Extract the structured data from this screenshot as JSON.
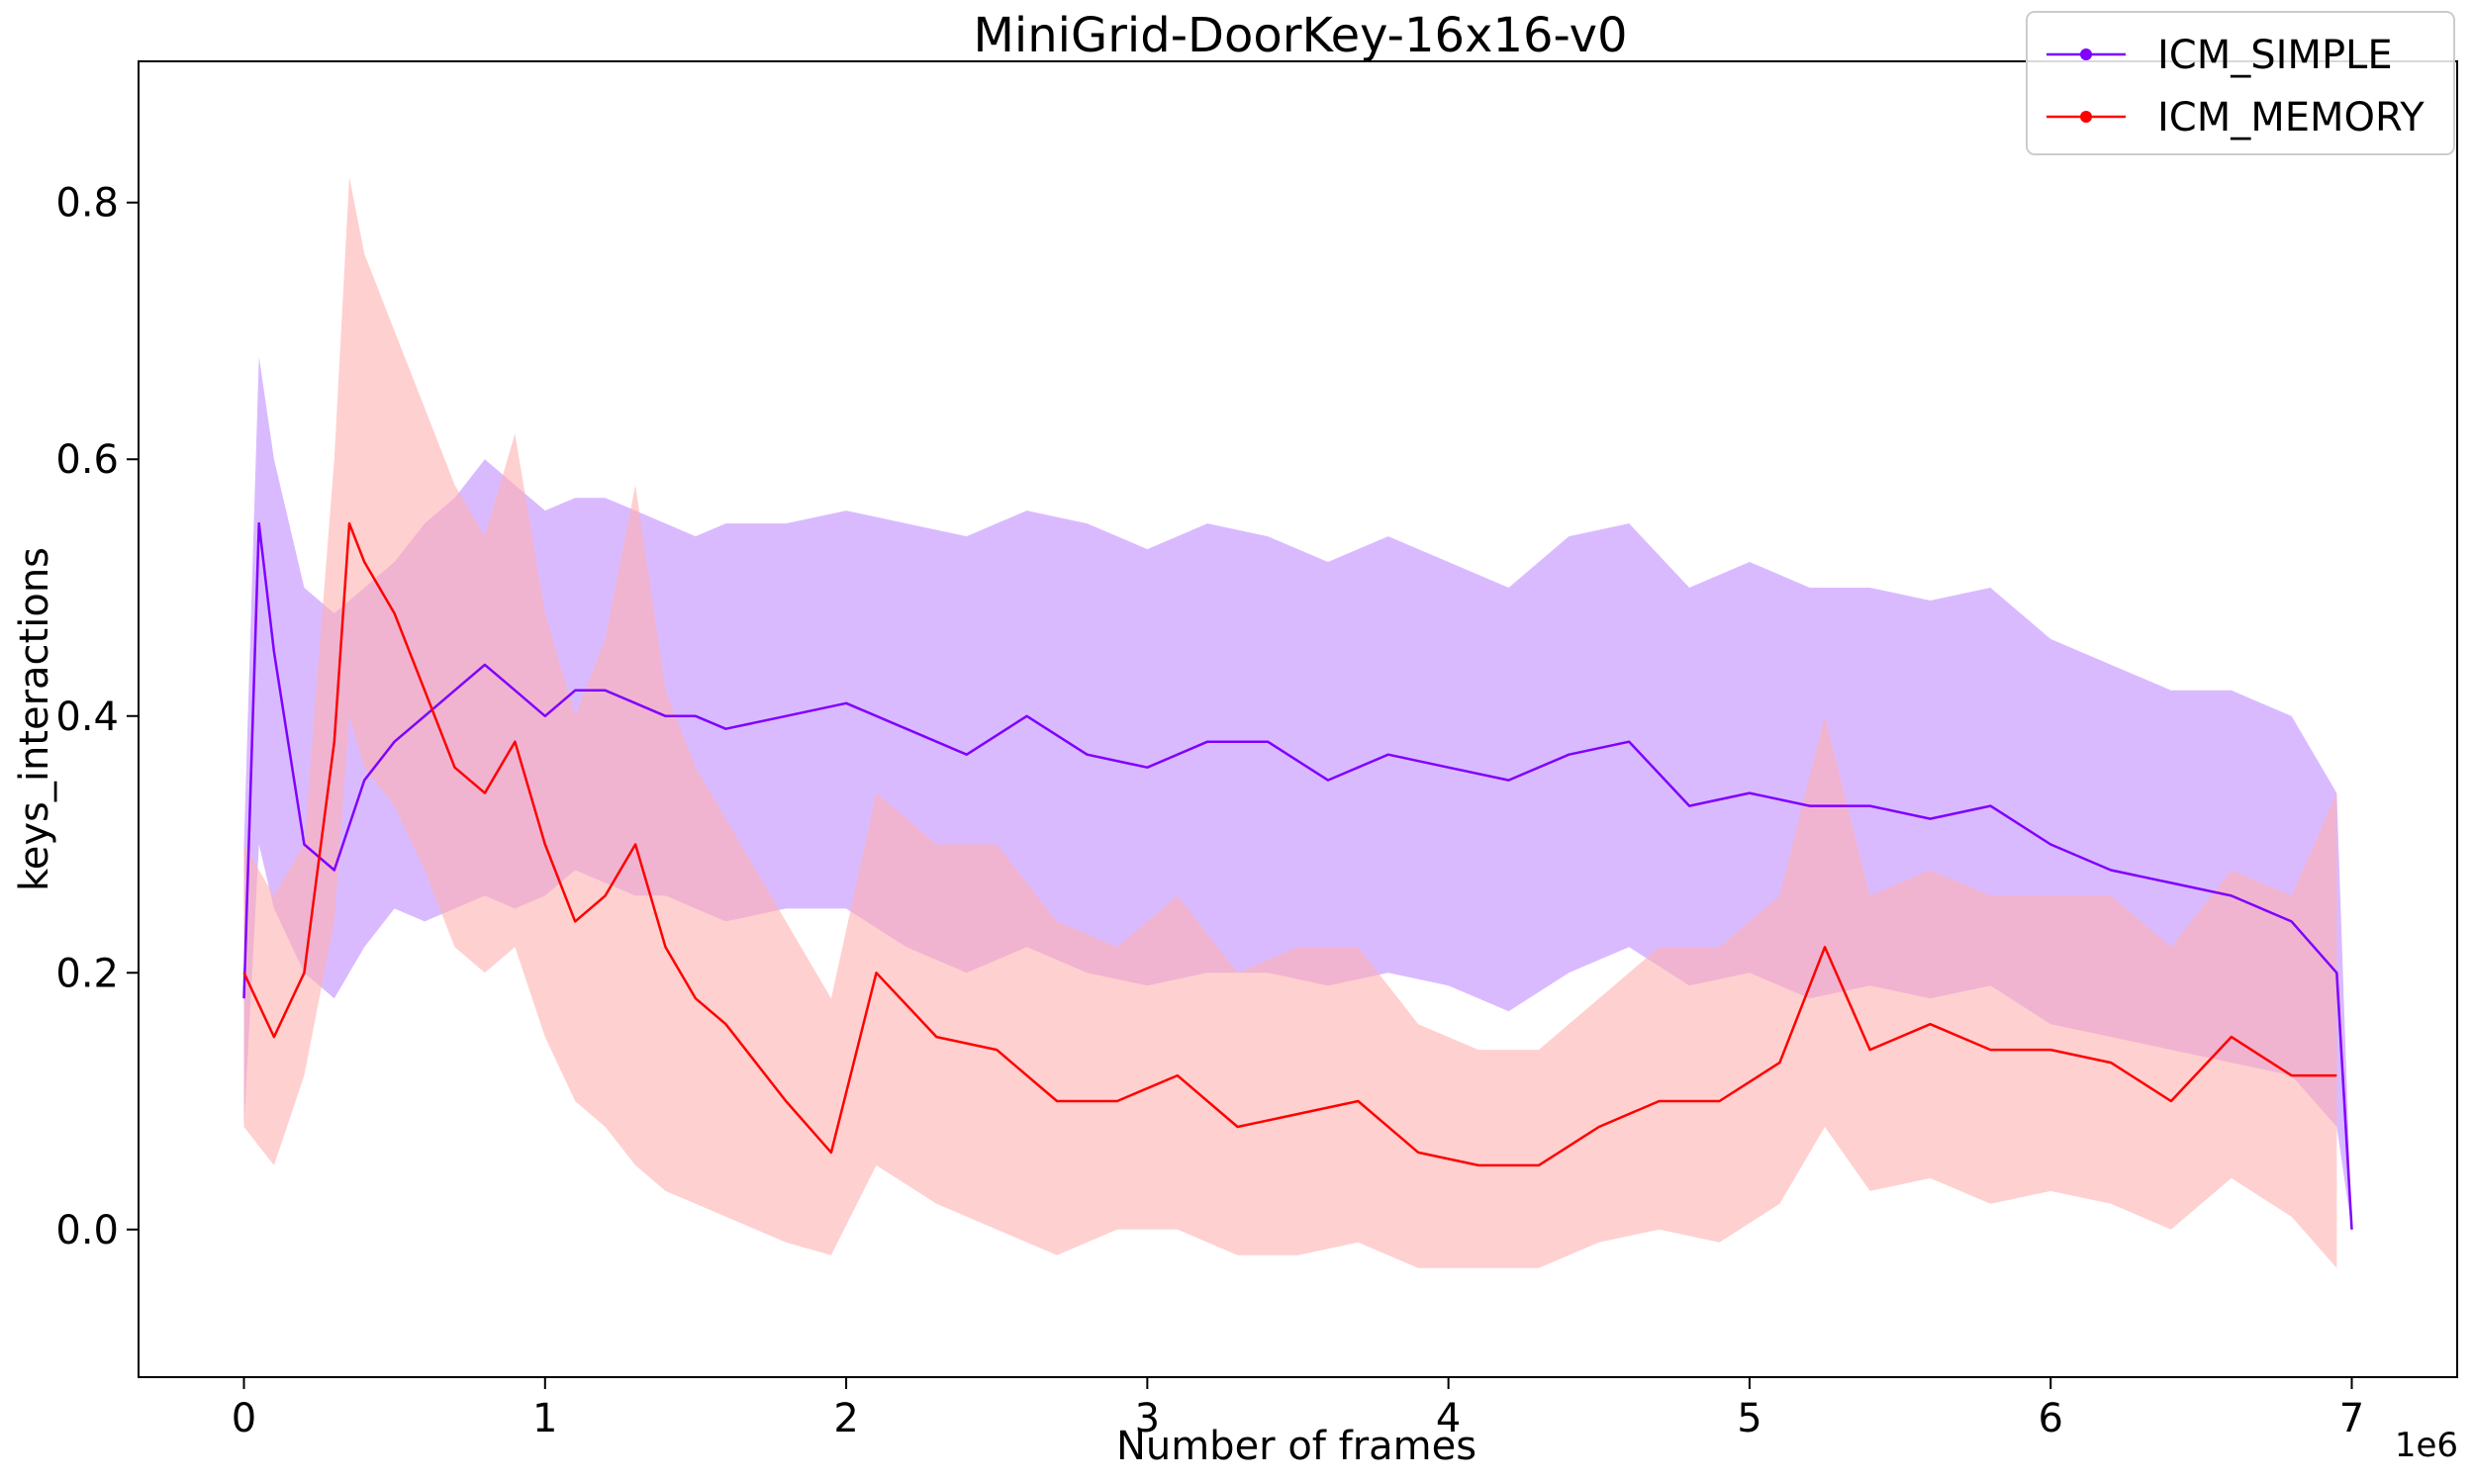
{
  "chart_data": {
    "type": "line",
    "title": "MiniGrid-DoorKey-16x16-v0",
    "xlabel": "Number of frames",
    "ylabel": "keys_interactions",
    "x_offset_label": "1e6",
    "xlim": [
      -0.35,
      7.35
    ],
    "ylim": [
      -0.115,
      0.91
    ],
    "x_ticks": [
      0,
      1,
      2,
      3,
      4,
      5,
      6,
      7
    ],
    "x_tick_labels": [
      "0",
      "1",
      "2",
      "3",
      "4",
      "5",
      "6",
      "7"
    ],
    "y_ticks": [
      0.0,
      0.2,
      0.4,
      0.6,
      0.8
    ],
    "y_tick_labels": [
      "0.0",
      "0.2",
      "0.4",
      "0.6",
      "0.8"
    ],
    "grid": false,
    "legend_position": "top-right",
    "series": [
      {
        "name": "ICM_SIMPLE",
        "color": "#8000ff",
        "band_color": "#c28cff",
        "x": [
          0.0,
          0.05,
          0.1,
          0.2,
          0.3,
          0.4,
          0.5,
          0.6,
          0.7,
          0.8,
          0.9,
          1.0,
          1.1,
          1.2,
          1.3,
          1.4,
          1.5,
          1.6,
          1.8,
          2.0,
          2.2,
          2.4,
          2.6,
          2.8,
          3.0,
          3.2,
          3.4,
          3.6,
          3.8,
          4.0,
          4.2,
          4.4,
          4.6,
          4.8,
          5.0,
          5.2,
          5.4,
          5.6,
          5.8,
          6.0,
          6.2,
          6.4,
          6.6,
          6.8,
          6.95,
          7.0
        ],
        "mean": [
          0.18,
          0.55,
          0.45,
          0.3,
          0.28,
          0.35,
          0.38,
          0.4,
          0.42,
          0.44,
          0.42,
          0.4,
          0.42,
          0.42,
          0.41,
          0.4,
          0.4,
          0.39,
          0.4,
          0.41,
          0.39,
          0.37,
          0.4,
          0.37,
          0.36,
          0.38,
          0.38,
          0.35,
          0.37,
          0.36,
          0.35,
          0.37,
          0.38,
          0.33,
          0.34,
          0.33,
          0.33,
          0.32,
          0.33,
          0.3,
          0.28,
          0.27,
          0.26,
          0.24,
          0.2,
          0.0
        ],
        "lower": [
          0.08,
          0.3,
          0.25,
          0.2,
          0.18,
          0.22,
          0.25,
          0.24,
          0.25,
          0.26,
          0.25,
          0.26,
          0.28,
          0.27,
          0.26,
          0.26,
          0.25,
          0.24,
          0.25,
          0.25,
          0.22,
          0.2,
          0.22,
          0.2,
          0.19,
          0.2,
          0.2,
          0.19,
          0.2,
          0.19,
          0.17,
          0.2,
          0.22,
          0.19,
          0.2,
          0.18,
          0.19,
          0.18,
          0.19,
          0.16,
          0.15,
          0.14,
          0.13,
          0.12,
          0.08,
          0.0
        ],
        "upper": [
          0.3,
          0.68,
          0.6,
          0.5,
          0.48,
          0.5,
          0.52,
          0.55,
          0.57,
          0.6,
          0.58,
          0.56,
          0.57,
          0.57,
          0.56,
          0.55,
          0.54,
          0.55,
          0.55,
          0.56,
          0.55,
          0.54,
          0.56,
          0.55,
          0.53,
          0.55,
          0.54,
          0.52,
          0.54,
          0.52,
          0.5,
          0.54,
          0.55,
          0.5,
          0.52,
          0.5,
          0.5,
          0.49,
          0.5,
          0.46,
          0.44,
          0.42,
          0.42,
          0.4,
          0.34,
          0.0
        ]
      },
      {
        "name": "ICM_MEMORY",
        "color": "#ff0000",
        "band_color": "#ffb0b0",
        "x": [
          0.0,
          0.1,
          0.2,
          0.3,
          0.35,
          0.4,
          0.5,
          0.6,
          0.7,
          0.8,
          0.9,
          1.0,
          1.1,
          1.2,
          1.3,
          1.4,
          1.5,
          1.6,
          1.8,
          1.95,
          2.1,
          2.3,
          2.5,
          2.7,
          2.9,
          3.1,
          3.3,
          3.5,
          3.7,
          3.9,
          4.1,
          4.3,
          4.5,
          4.7,
          4.9,
          5.1,
          5.25,
          5.4,
          5.6,
          5.8,
          6.0,
          6.2,
          6.4,
          6.6,
          6.8,
          6.95
        ],
        "mean": [
          0.2,
          0.15,
          0.2,
          0.38,
          0.55,
          0.52,
          0.48,
          0.42,
          0.36,
          0.34,
          0.38,
          0.3,
          0.24,
          0.26,
          0.3,
          0.22,
          0.18,
          0.16,
          0.1,
          0.06,
          0.2,
          0.15,
          0.14,
          0.1,
          0.1,
          0.12,
          0.08,
          0.09,
          0.1,
          0.06,
          0.05,
          0.05,
          0.08,
          0.1,
          0.1,
          0.13,
          0.22,
          0.14,
          0.16,
          0.14,
          0.14,
          0.13,
          0.1,
          0.15,
          0.12,
          0.12
        ],
        "lower": [
          0.08,
          0.05,
          0.12,
          0.24,
          0.4,
          0.36,
          0.33,
          0.28,
          0.22,
          0.2,
          0.22,
          0.15,
          0.1,
          0.08,
          0.05,
          0.03,
          0.02,
          0.01,
          -0.01,
          -0.02,
          0.05,
          0.02,
          0.0,
          -0.02,
          0.0,
          0.0,
          -0.02,
          -0.02,
          -0.01,
          -0.03,
          -0.03,
          -0.03,
          -0.01,
          0.0,
          -0.01,
          0.02,
          0.08,
          0.03,
          0.04,
          0.02,
          0.03,
          0.02,
          0.0,
          0.04,
          0.01,
          -0.03
        ],
        "upper": [
          0.3,
          0.26,
          0.3,
          0.6,
          0.82,
          0.76,
          0.7,
          0.64,
          0.58,
          0.54,
          0.62,
          0.48,
          0.4,
          0.46,
          0.58,
          0.42,
          0.36,
          0.32,
          0.24,
          0.18,
          0.34,
          0.3,
          0.3,
          0.24,
          0.22,
          0.26,
          0.2,
          0.22,
          0.22,
          0.16,
          0.14,
          0.14,
          0.18,
          0.22,
          0.22,
          0.26,
          0.4,
          0.26,
          0.28,
          0.26,
          0.26,
          0.26,
          0.22,
          0.28,
          0.26,
          0.34
        ]
      }
    ]
  }
}
